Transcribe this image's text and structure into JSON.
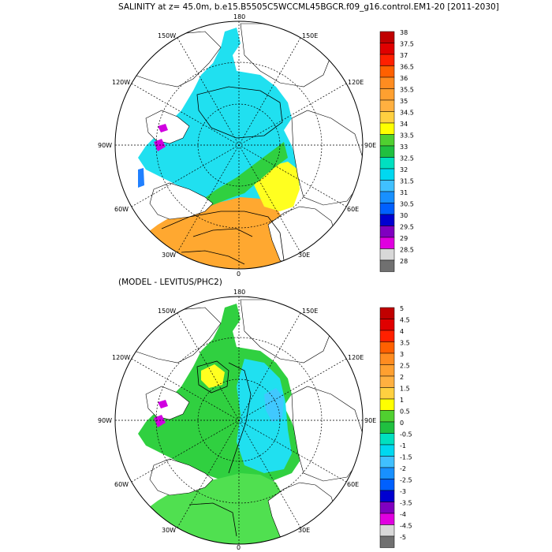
{
  "header": {
    "title": "SALINITY at z=  45.0m, b.e15.B5505C5WCCML45BGCR.f09_g16.control.EM1-20 [2011-2030]",
    "subtitle": "(MODEL - LEVITUS/PHC2)"
  },
  "maps": [
    {
      "name": "model-salinity",
      "lon_labels": {
        "top": "180",
        "tl": "150W",
        "tr": "150E",
        "ul": "120W",
        "ur": "120E",
        "l": "90W",
        "r": "90E",
        "ll": "60W",
        "lr": "60E",
        "bl": "30W",
        "br": "30E",
        "bottom": "0"
      }
    },
    {
      "name": "model-minus-levitus",
      "lon_labels": {
        "top": "180",
        "tl": "150W",
        "tr": "150E",
        "ul": "120W",
        "ur": "120E",
        "l": "90W",
        "r": "90E",
        "ll": "60W",
        "lr": "60E",
        "bl": "30W",
        "br": "30E",
        "bottom": "0"
      }
    }
  ],
  "colorbars": [
    {
      "name": "salinity-colorbar",
      "labels": [
        "38",
        "37.5",
        "37",
        "36.5",
        "36",
        "35.5",
        "35",
        "34.5",
        "34",
        "33.5",
        "33",
        "32.5",
        "32",
        "31.5",
        "31",
        "30.5",
        "30",
        "29.5",
        "29",
        "28.5",
        "28"
      ],
      "colors": [
        "#c00000",
        "#e00000",
        "#ff2000",
        "#ff6000",
        "#ff8c20",
        "#ffa030",
        "#ffb040",
        "#ffd040",
        "#ffff00",
        "#50d030",
        "#20c040",
        "#00e0c0",
        "#00d8f0",
        "#40c0ff",
        "#1890ff",
        "#0060ff",
        "#0000d0",
        "#8000c0",
        "#e000e0",
        "#d8d8d8",
        "#707070"
      ]
    },
    {
      "name": "difference-colorbar",
      "labels": [
        "5",
        "4.5",
        "4",
        "3.5",
        "3",
        "2.5",
        "2",
        "1.5",
        "1",
        "0.5",
        "0",
        "-0.5",
        "-1",
        "-1.5",
        "-2",
        "-2.5",
        "-3",
        "-3.5",
        "-4",
        "-4.5",
        "-5"
      ],
      "colors": [
        "#c00000",
        "#e00000",
        "#ff2000",
        "#ff6000",
        "#ff8c20",
        "#ffa030",
        "#ffb040",
        "#ffd040",
        "#ffff00",
        "#50d030",
        "#20c040",
        "#00e0c0",
        "#00d8f0",
        "#40c0ff",
        "#1890ff",
        "#0060ff",
        "#0000d0",
        "#8000c0",
        "#e000e0",
        "#d8d8d8",
        "#707070"
      ]
    }
  ],
  "fills": {
    "ocean_cyan": "#20e0f0",
    "ocean_light": "#40c8ff",
    "green": "#30d040",
    "light_green": "#50e050",
    "yellow": "#ffff20",
    "orange": "#ffa830",
    "deep_orange": "#ff8c20",
    "blue": "#2080ff",
    "magenta": "#d000e0",
    "land": "#ffffff",
    "line": "#000000"
  }
}
